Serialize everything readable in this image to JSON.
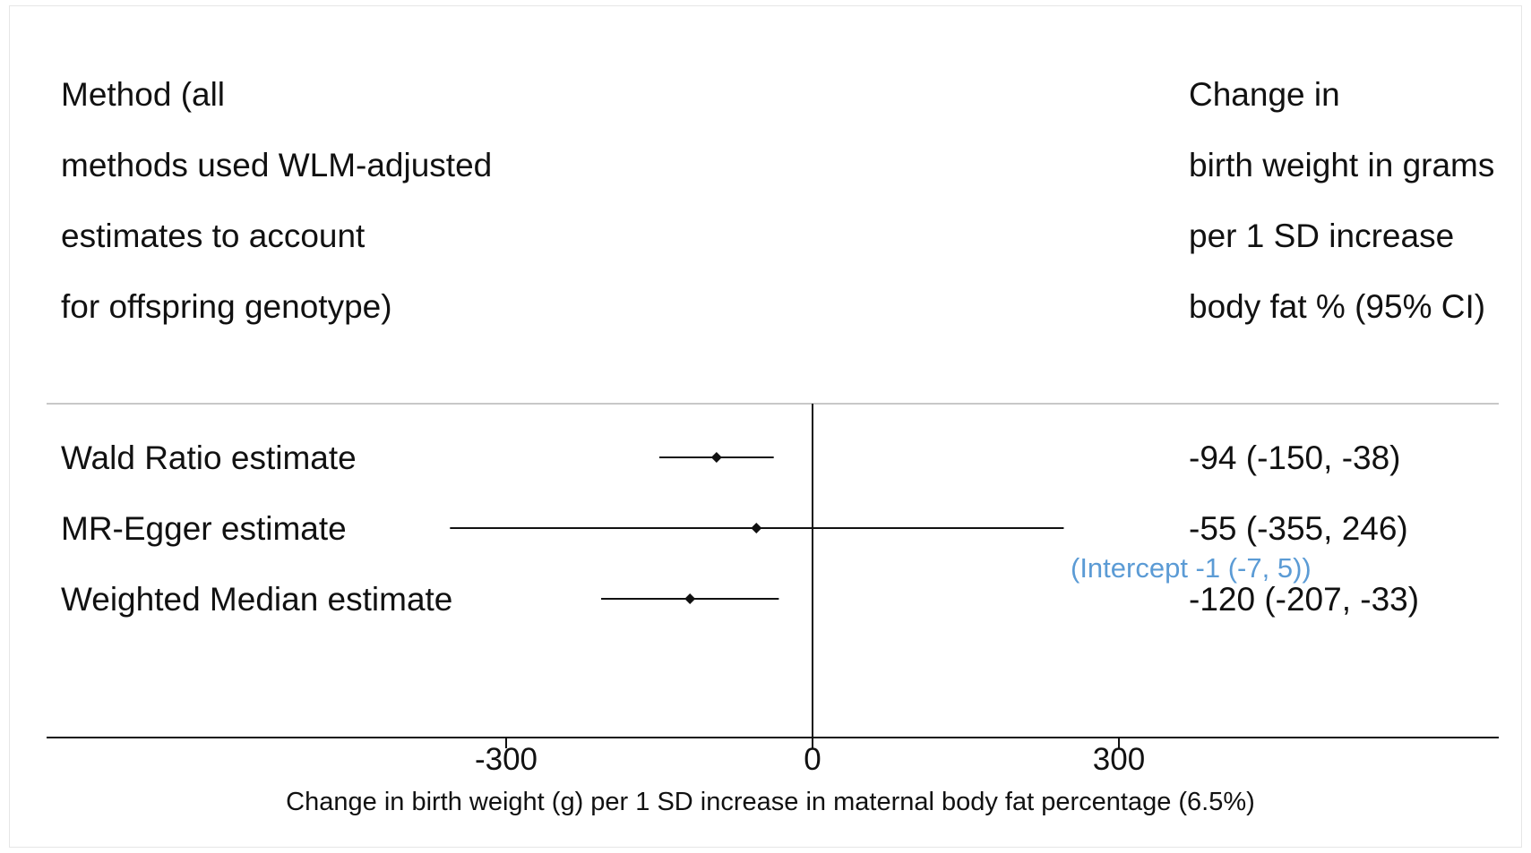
{
  "chart_data": {
    "type": "forest",
    "left_header_lines": [
      "Method (all",
      "methods used WLM-adjusted",
      "estimates to account",
      "for offspring genotype)"
    ],
    "right_header_lines": [
      "Change in",
      "birth weight in grams",
      "per 1 SD increase",
      "body fat % (95% CI)"
    ],
    "rows": [
      {
        "label": "Wald Ratio estimate",
        "estimate": -94,
        "lower": -150,
        "upper": -38,
        "text": "-94 (-150, -38)",
        "note": ""
      },
      {
        "label": "MR-Egger estimate",
        "estimate": -55,
        "lower": -355,
        "upper": 246,
        "text": "-55 (-355, 246)",
        "note": "(Intercept -1 (-7, 5))"
      },
      {
        "label": "Weighted Median estimate",
        "estimate": -120,
        "lower": -207,
        "upper": -33,
        "text": "-120 (-207, -33)",
        "note": ""
      }
    ],
    "x_ticks": [
      -300,
      0,
      300
    ],
    "x_tick_labels": [
      "-300",
      "0",
      "300"
    ],
    "xlabel": "Change in birth weight (g) per 1 SD increase in maternal body fat percentage (6.5%)",
    "null_value": 0,
    "colors": {
      "marks": "#111111",
      "axis": "#111111",
      "divider": "#c8c8c8",
      "note": "#5b9bd5"
    }
  }
}
